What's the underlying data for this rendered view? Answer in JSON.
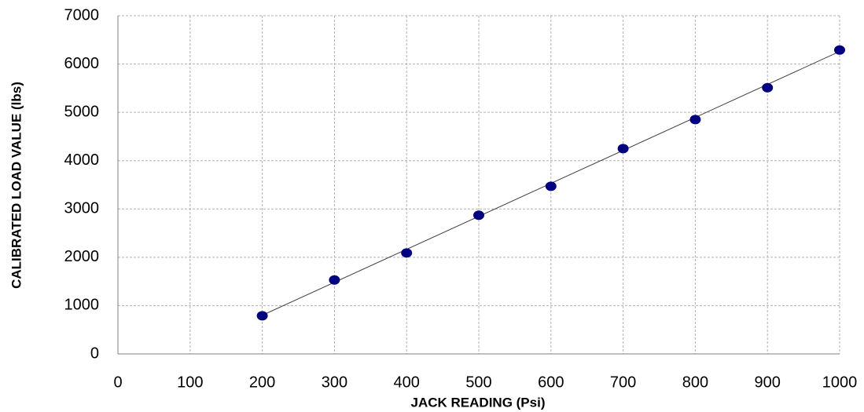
{
  "chart_data": {
    "type": "scatter",
    "x_label": "JACK READING (Psi)",
    "y_label": "CALIBRATED LOAD VALUE  (lbs)",
    "x": [
      200,
      300,
      400,
      500,
      600,
      700,
      800,
      900,
      1000
    ],
    "values": [
      790,
      1530,
      2090,
      2870,
      3470,
      4250,
      4850,
      5510,
      6290
    ],
    "color": "#000080",
    "trend": {
      "x": [
        200,
        1000
      ],
      "values": [
        800,
        6260
      ],
      "color": "#404040"
    },
    "xlim": [
      0,
      1000
    ],
    "xticks": [
      0,
      100,
      200,
      300,
      400,
      500,
      600,
      700,
      800,
      900,
      1000
    ],
    "ylim": [
      0,
      7000
    ],
    "yticks": [
      0,
      1000,
      2000,
      3000,
      4000,
      5000,
      6000,
      7000
    ],
    "grid": true
  }
}
